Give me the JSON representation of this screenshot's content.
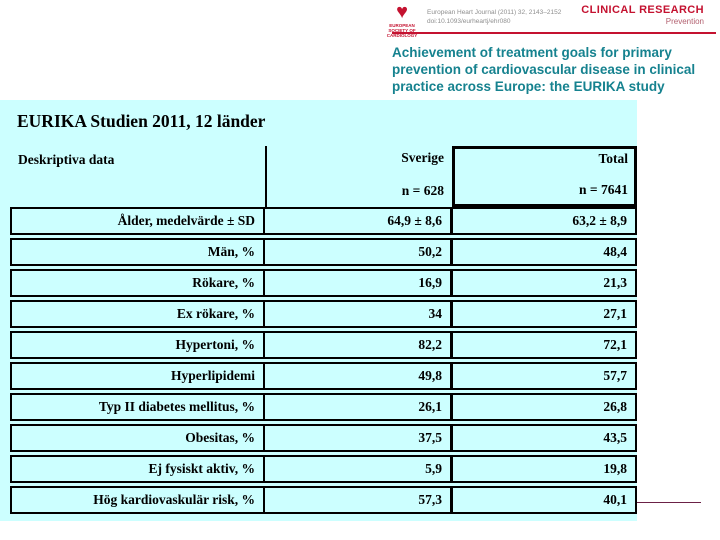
{
  "journal_header": {
    "logo": {
      "icon": "esc-heart-logo",
      "caption": "EUROPEAN SOCIETY OF CARDIOLOGY"
    },
    "citation_line1": "European Heart Journal (2011) 32, 2143–2152",
    "citation_line2": "doi:10.1093/eurheartj/ehr080",
    "section_title": "CLINICAL RESEARCH",
    "section_sub": "Prevention",
    "paper_title_lines": {
      "line1": "Achievement of treatment goals for primary",
      "line2": "prevention of cardiovascular disease in clinical",
      "line3": "practice across Europe: the EURIKA study"
    },
    "accent_red": "#c41230",
    "title_teal": "#16828f"
  },
  "slide": {
    "background_color": "#ccffff",
    "title": "EURIKA Studien 2011, 12 länder",
    "table": {
      "header": {
        "label_col": "Deskriptiva data",
        "sverige_title": "Sverige",
        "sverige_n": "n = 628",
        "total_title": "Total",
        "total_n": "n = 7641"
      },
      "rows": [
        {
          "label": "Ålder, medelvärde ± SD",
          "sverige": "64,9 ± 8,6",
          "total": "63,2 ± 8,9"
        },
        {
          "label": "Män, %",
          "sverige": "50,2",
          "total": "48,4"
        },
        {
          "label": "Rökare, %",
          "sverige": "16,9",
          "total": "21,3"
        },
        {
          "label": "Ex rökare, %",
          "sverige": "34",
          "total": "27,1"
        },
        {
          "label": "Hypertoni, %",
          "sverige": "82,2",
          "total": "72,1"
        },
        {
          "label": "Hyperlipidemi",
          "sverige": "49,8",
          "total": "57,7"
        },
        {
          "label": "Typ II diabetes mellitus, %",
          "sverige": "26,1",
          "total": "26,8"
        },
        {
          "label": "Obesitas, %",
          "sverige": "37,5",
          "total": "43,5"
        },
        {
          "label": "Ej fysiskt aktiv, %",
          "sverige": "5,9",
          "total": "19,8"
        },
        {
          "label": "Hög kardiovaskulär risk, %",
          "sverige": "57,3",
          "total": "40,1"
        }
      ]
    },
    "pointer_line_color": "#6b2146"
  }
}
